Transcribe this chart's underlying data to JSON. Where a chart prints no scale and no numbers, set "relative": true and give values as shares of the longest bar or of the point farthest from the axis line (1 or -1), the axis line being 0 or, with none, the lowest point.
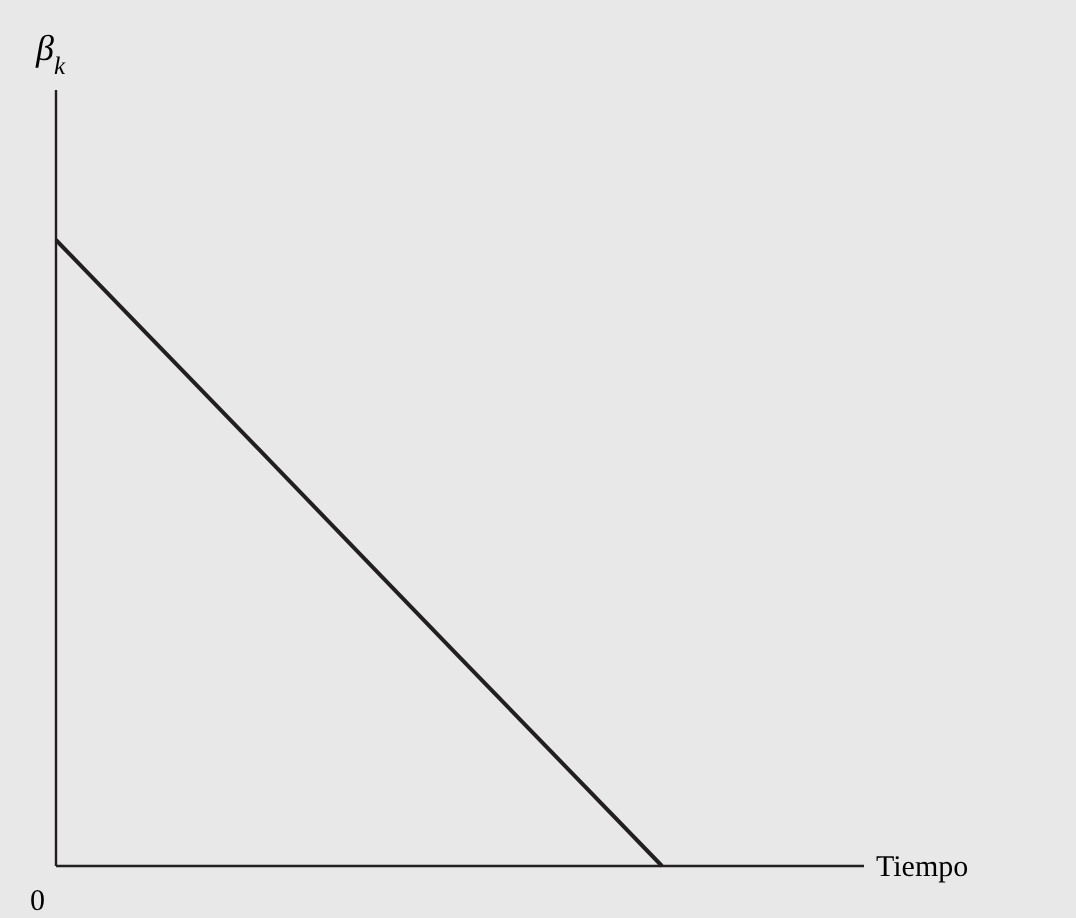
{
  "chart_data": {
    "type": "line",
    "relative": true,
    "ylabel": "β$_{k}$",
    "xlabel": "Tiempo",
    "categories": [
      null,
      null,
      null,
      null,
      null
    ],
    "series": [
      {
        "color": "#231f20",
        "values": [
          1,
          0.667,
          0.333,
          0,
          null
        ]
      }
    ],
    "annotations": [
      "0"
    ],
    "line_style": "solid"
  }
}
